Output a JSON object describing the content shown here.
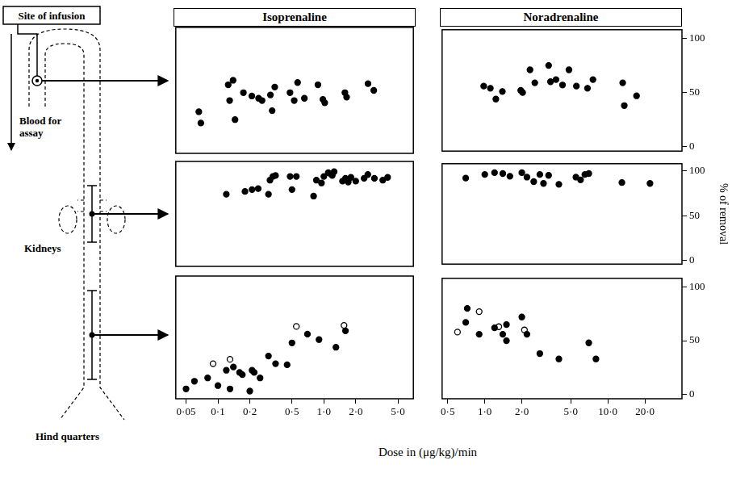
{
  "figure": {
    "xlabel": "Dose in (μg/kg)/min",
    "ylabel": "% of removal"
  },
  "diagram": {
    "site_label": "Site of infusion",
    "blood_label": "Blood for assay",
    "kidneys_label": "Kidneys",
    "hind_label": "Hind quarters"
  },
  "chart_data": [
    {
      "type": "scatter",
      "title": "Isoprenaline",
      "log": "x",
      "xlim": [
        0.04,
        7
      ],
      "ylim": [
        -4,
        108
      ],
      "series": [
        {
          "marker": "filled_circle",
          "color": "#000000",
          "x": [
            0.066,
            0.069,
            0.125,
            0.129,
            0.139,
            0.145,
            0.174,
            0.209,
            0.242,
            0.261,
            0.313,
            0.325,
            0.344,
            0.479,
            0.525,
            0.565,
            0.655,
            0.879,
            0.98,
            1.02,
            1.58,
            1.64,
            2.61,
            2.96
          ],
          "values": [
            33,
            23,
            57,
            43,
            61,
            26,
            50,
            47,
            45,
            43,
            48,
            34,
            55,
            50,
            43,
            59,
            45,
            57,
            44,
            41,
            50,
            46,
            58,
            52
          ]
        }
      ]
    },
    {
      "type": "scatter",
      "title": "Noradrenaline",
      "log": "x",
      "xlim": [
        0.45,
        40
      ],
      "ylim": [
        -4,
        108
      ],
      "yticks": [
        0,
        50,
        100
      ],
      "series": [
        {
          "marker": "filled_circle",
          "color": "#000000",
          "x": [
            0.98,
            1.11,
            1.23,
            1.39,
            1.96,
            2.03,
            2.33,
            2.55,
            3.3,
            3.42,
            3.79,
            4.28,
            4.83,
            5.55,
            6.83,
            7.57,
            13.2,
            13.6,
            17.1
          ],
          "values": [
            56,
            54,
            44,
            51,
            52,
            50,
            71,
            59,
            75,
            60,
            62,
            57,
            71,
            56,
            54,
            62,
            59,
            38,
            47
          ]
        }
      ]
    },
    {
      "type": "scatter",
      "log": "x",
      "xlim": [
        0.04,
        7
      ],
      "ylim": [
        -4,
        108
      ],
      "series": [
        {
          "marker": "filled_circle",
          "color": "#000000",
          "x": [
            0.12,
            0.18,
            0.21,
            0.24,
            0.3,
            0.31,
            0.33,
            0.35,
            0.48,
            0.5,
            0.55,
            0.8,
            0.85,
            0.95,
            1.0,
            1.1,
            1.15,
            1.2,
            1.25,
            1.5,
            1.6,
            1.7,
            1.8,
            2.0,
            2.4,
            2.6,
            3.0,
            3.6,
            4.0
          ],
          "values": [
            73,
            76,
            78,
            79,
            73,
            88,
            92,
            93,
            92,
            78,
            92,
            71,
            88,
            85,
            92,
            96,
            95,
            93,
            97,
            87,
            90,
            86,
            91,
            87,
            90,
            94,
            90,
            88,
            91
          ]
        }
      ]
    },
    {
      "type": "scatter",
      "log": "x",
      "xlim": [
        0.45,
        40
      ],
      "ylim": [
        -4,
        108
      ],
      "yticks": [
        0,
        50,
        100
      ],
      "series": [
        {
          "marker": "filled_circle",
          "color": "#000000",
          "x": [
            0.7,
            1.0,
            1.2,
            1.4,
            1.6,
            2.0,
            2.2,
            2.5,
            2.8,
            3.0,
            3.3,
            4.0,
            5.5,
            6.0,
            6.5,
            7.0,
            13.0,
            22.0
          ],
          "values": [
            92,
            96,
            98,
            97,
            94,
            98,
            93,
            88,
            96,
            86,
            95,
            85,
            93,
            90,
            96,
            97,
            87,
            86
          ]
        }
      ]
    },
    {
      "type": "scatter",
      "log": "x",
      "xlim": [
        0.04,
        7
      ],
      "ylim": [
        -4,
        108
      ],
      "xticks": [
        {
          "value": 0.05,
          "label": "0·05"
        },
        {
          "value": 0.1,
          "label": "0·1"
        },
        {
          "value": 0.2,
          "label": "0·2"
        },
        {
          "value": 0.5,
          "label": "0·5"
        },
        {
          "value": 1,
          "label": "1·0"
        },
        {
          "value": 2,
          "label": "2·0"
        },
        {
          "value": 5,
          "label": "5·0"
        }
      ],
      "series": [
        {
          "marker": "filled_circle",
          "color": "#000000",
          "x": [
            0.05,
            0.06,
            0.08,
            0.1,
            0.12,
            0.13,
            0.14,
            0.16,
            0.17,
            0.2,
            0.21,
            0.22,
            0.25,
            0.3,
            0.35,
            0.45,
            0.5,
            0.7,
            0.9,
            1.3,
            1.6
          ],
          "values": [
            5,
            12,
            15,
            8,
            22,
            5,
            25,
            20,
            18,
            3,
            22,
            20,
            15,
            35,
            28,
            27,
            47,
            55,
            50,
            43,
            58
          ]
        },
        {
          "marker": "open_circle",
          "color": "#000000",
          "x": [
            0.09,
            0.13,
            0.55,
            1.55
          ],
          "values": [
            28,
            32,
            62,
            63
          ]
        }
      ]
    },
    {
      "type": "scatter",
      "log": "x",
      "xlim": [
        0.45,
        40
      ],
      "ylim": [
        -4,
        108
      ],
      "yticks": [
        0,
        50,
        100
      ],
      "xticks": [
        {
          "value": 0.5,
          "label": "0·5"
        },
        {
          "value": 1,
          "label": "1·0"
        },
        {
          "value": 2,
          "label": "2·0"
        },
        {
          "value": 5,
          "label": "5·0"
        },
        {
          "value": 10,
          "label": "10·0"
        },
        {
          "value": 20,
          "label": "20·0"
        }
      ],
      "series": [
        {
          "marker": "filled_circle",
          "color": "#000000",
          "x": [
            0.7,
            0.72,
            0.9,
            1.2,
            1.4,
            1.5,
            1.5,
            2.0,
            2.2,
            2.8,
            4.0,
            7.0,
            8.0
          ],
          "values": [
            67,
            80,
            56,
            62,
            56,
            50,
            65,
            72,
            56,
            38,
            33,
            48,
            33
          ]
        },
        {
          "marker": "open_circle",
          "color": "#000000",
          "x": [
            0.6,
            0.9,
            1.3,
            2.1
          ],
          "values": [
            58,
            77,
            63,
            60
          ]
        }
      ]
    }
  ]
}
